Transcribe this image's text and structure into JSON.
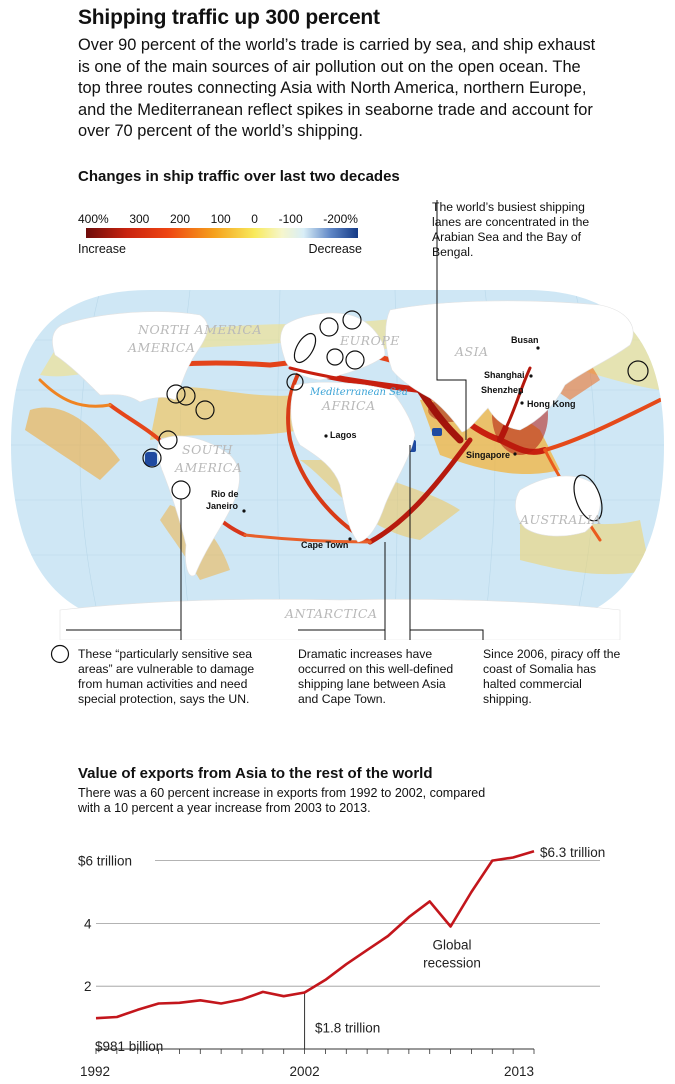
{
  "header": {
    "title": "Shipping traffic up 300 percent",
    "intro": "Over 90 percent of the world’s trade is carried by sea, and ship exhaust is one of the main sources of air pollution out on the open ocean. The top three routes connecting Asia with North America, northern Europe, and the Mediterranean reflect spikes in seaborne trade and account for over 70 percent of the world’s shipping."
  },
  "map": {
    "title": "Changes in ship traffic over last two decades",
    "scale_ticks": [
      "400%",
      "300",
      "200",
      "100",
      "0",
      "-100",
      "-200%"
    ],
    "scale_left": "Increase",
    "scale_right": "Decrease",
    "colors": {
      "increase_strong": "#7a0e0a",
      "increase": "#d62a12",
      "mid": "#f2a21c",
      "neutral": "#f6f6cc",
      "decrease": "#1e3f8a",
      "ocean": "#cfe7f5"
    },
    "regions": [
      "NORTH AMERICA",
      "SOUTH AMERICA",
      "EUROPE",
      "AFRICA",
      "ASIA",
      "AUSTRALIA",
      "ANTARCTICA"
    ],
    "sea_label": "Mediterranean Sea",
    "cities": [
      "Busan",
      "Shanghai",
      "Shenzhen",
      "Hong Kong",
      "Singapore",
      "Lagos",
      "Rio de Janeiro",
      "Cape Town"
    ],
    "annotations": {
      "busiest": "The world’s busiest shipping lanes are concentrated in the Arabian Sea and the Bay of Bengal.",
      "sensitive": "These “particularly sensitive sea areas” are vulnerable to damage from human activities and need special protection, says the UN.",
      "capetown": "Dramatic increases have occurred on this well-defined shipping lane between Asia and Cape Town.",
      "somalia": "Since 2006, piracy off the coast of Somalia has halted commercial shipping."
    }
  },
  "exports": {
    "title": "Value of exports from Asia to the rest of the world",
    "subtitle": "There was a 60 percent increase in exports from 1992 to 2002, compared with a 10 percent a year increase from 2003 to 2013.",
    "labels": {
      "end": "$6.3 trillion",
      "mid": "$1.8 trillion",
      "start": "$981 billion",
      "recession": "Global recession"
    }
  },
  "chart_data": {
    "type": "line",
    "title": "Value of exports from Asia to the rest of the world",
    "ylabel": "",
    "xlabel": "",
    "x": [
      1992,
      1993,
      1994,
      1995,
      1996,
      1997,
      1998,
      1999,
      2000,
      2001,
      2002,
      2003,
      2004,
      2005,
      2006,
      2007,
      2008,
      2009,
      2010,
      2011,
      2012,
      2013
    ],
    "series": [
      {
        "values": [
          0.98,
          1.02,
          1.25,
          1.45,
          1.47,
          1.55,
          1.45,
          1.58,
          1.82,
          1.68,
          1.8,
          2.2,
          2.7,
          3.15,
          3.6,
          4.2,
          4.7,
          3.9,
          5.0,
          6.0,
          6.1,
          6.3
        ]
      }
    ],
    "ylim": [
      0,
      6.6
    ],
    "xlim": [
      1992,
      2013
    ],
    "yticks": [
      "2",
      "4",
      "$6 trillion"
    ],
    "yticks_values": [
      2,
      4,
      6
    ],
    "xticks": [
      "1992",
      "2002",
      "2013"
    ],
    "line_color": "#c3161c",
    "grid": true
  }
}
